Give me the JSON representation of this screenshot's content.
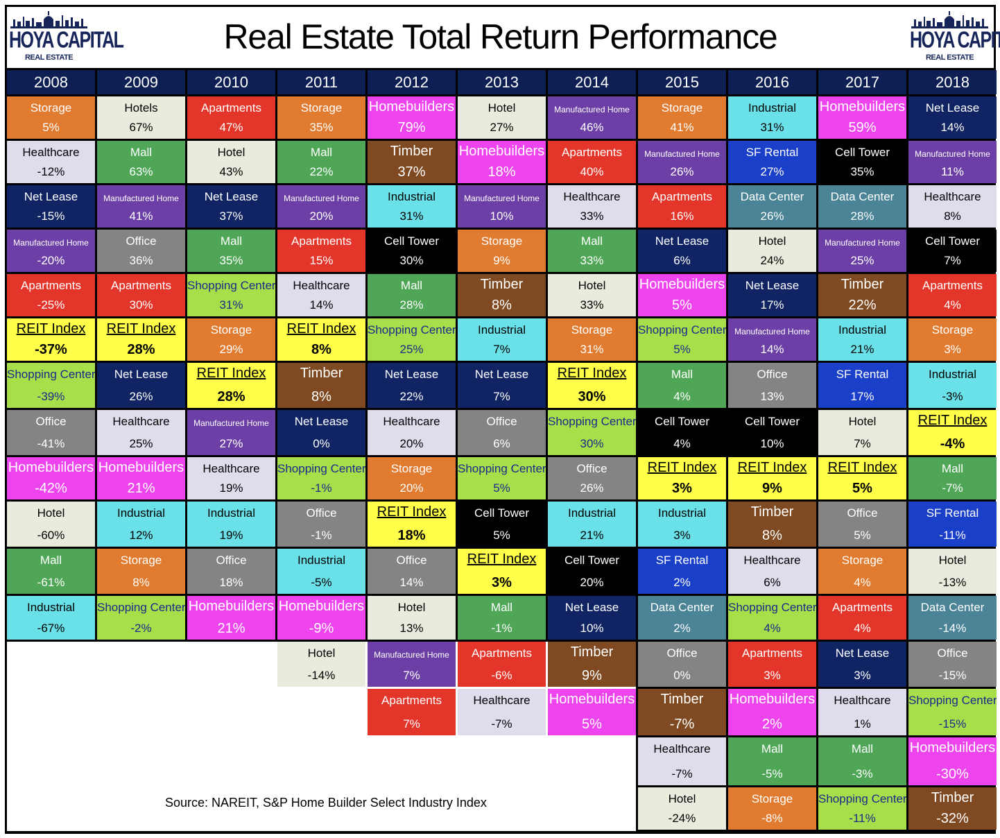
{
  "title": "Real Estate Total Return Performance",
  "logo": {
    "brand": "HOYA CAPITAL",
    "sub": "REAL ESTATE"
  },
  "source": "Source: NAREIT, S&P Home Builder Select Industry Index",
  "colors": {
    "Storage": "#e07b30",
    "Hotels": "#e8ecdc",
    "Hotel": "#e8ecdc",
    "Apartments": "#e4352a",
    "Homebuilders": "#ee44ee",
    "Manufactured Home": "#6c3fa6",
    "Industrial": "#6ae0e8",
    "Net Lease": "#102464",
    "Healthcare": "#e0dcec",
    "Mall": "#4fa656",
    "Timber": "#7f4a21",
    "SF Rental": "#1a3fc8",
    "Cell Tower": "#000000",
    "Data Center": "#4a8496",
    "Office": "#848484",
    "Shopping Center": "#a8de4a",
    "REIT Index": "#ffff4a"
  },
  "text_colors": {
    "dark": [
      "Hotels",
      "Hotel",
      "Industrial",
      "Healthcare",
      "Shopping Center",
      "REIT Index"
    ],
    "shopping_center_text": "#1a2a8a"
  },
  "chart_data": {
    "type": "table",
    "title": "Real Estate Total Return Performance",
    "years": [
      "2008",
      "2009",
      "2010",
      "2011",
      "2012",
      "2013",
      "2014",
      "2015",
      "2016",
      "2017",
      "2018"
    ],
    "columns": [
      [
        [
          "Storage",
          "5%"
        ],
        [
          "Healthcare",
          "-12%"
        ],
        [
          "Net Lease",
          "-15%"
        ],
        [
          "Manufactured Home",
          "-20%"
        ],
        [
          "Apartments",
          "-25%"
        ],
        [
          "REIT Index",
          "-37%"
        ],
        [
          "Shopping Center",
          "-39%"
        ],
        [
          "Office",
          "-41%"
        ],
        [
          "Homebuilders",
          "-42%"
        ],
        [
          "Hotel",
          "-60%"
        ],
        [
          "Mall",
          "-61%"
        ],
        [
          "Industrial",
          "-67%"
        ]
      ],
      [
        [
          "Hotels",
          "67%"
        ],
        [
          "Mall",
          "63%"
        ],
        [
          "Manufactured Home",
          "41%"
        ],
        [
          "Office",
          "36%"
        ],
        [
          "Apartments",
          "30%"
        ],
        [
          "REIT Index",
          "28%"
        ],
        [
          "Net Lease",
          "26%"
        ],
        [
          "Healthcare",
          "25%"
        ],
        [
          "Homebuilders",
          "21%"
        ],
        [
          "Industrial",
          "12%"
        ],
        [
          "Storage",
          "8%"
        ],
        [
          "Shopping Center",
          "-2%"
        ]
      ],
      [
        [
          "Apartments",
          "47%"
        ],
        [
          "Hotel",
          "43%"
        ],
        [
          "Net Lease",
          "37%"
        ],
        [
          "Mall",
          "35%"
        ],
        [
          "Shopping Center",
          "31%"
        ],
        [
          "Storage",
          "29%"
        ],
        [
          "REIT Index",
          "28%"
        ],
        [
          "Manufactured Home",
          "27%"
        ],
        [
          "Healthcare",
          "19%"
        ],
        [
          "Industrial",
          "19%"
        ],
        [
          "Office",
          "18%"
        ],
        [
          "Homebuilders",
          "21%"
        ]
      ],
      [
        [
          "Storage",
          "35%"
        ],
        [
          "Mall",
          "22%"
        ],
        [
          "Manufactured Home",
          "20%"
        ],
        [
          "Apartments",
          "15%"
        ],
        [
          "Healthcare",
          "14%"
        ],
        [
          "REIT Index",
          "8%"
        ],
        [
          "Timber",
          "8%"
        ],
        [
          "Net Lease",
          "0%"
        ],
        [
          "Shopping Center",
          "-1%"
        ],
        [
          "Office",
          "-1%"
        ],
        [
          "Industrial",
          "-5%"
        ],
        [
          "Homebuilders",
          "-9%"
        ],
        [
          "Hotel",
          "-14%"
        ]
      ],
      [
        [
          "Homebuilders",
          "79%"
        ],
        [
          "Timber",
          "37%"
        ],
        [
          "Industrial",
          "31%"
        ],
        [
          "Cell Tower",
          "30%"
        ],
        [
          "Mall",
          "28%"
        ],
        [
          "Shopping Center",
          "25%"
        ],
        [
          "Net Lease",
          "22%"
        ],
        [
          "Healthcare",
          "20%"
        ],
        [
          "Storage",
          "20%"
        ],
        [
          "REIT Index",
          "18%"
        ],
        [
          "Office",
          "14%"
        ],
        [
          "Hotel",
          "13%"
        ],
        [
          "Manufactured Home",
          "7%"
        ],
        [
          "Apartments",
          "7%"
        ]
      ],
      [
        [
          "Hotel",
          "27%"
        ],
        [
          "Homebuilders",
          "18%"
        ],
        [
          "Manufactured Home",
          "10%"
        ],
        [
          "Storage",
          "9%"
        ],
        [
          "Timber",
          "8%"
        ],
        [
          "Industrial",
          "7%"
        ],
        [
          "Net Lease",
          "7%"
        ],
        [
          "Office",
          "6%"
        ],
        [
          "Shopping Center",
          "5%"
        ],
        [
          "Cell Tower",
          "5%"
        ],
        [
          "REIT Index",
          "3%"
        ],
        [
          "Mall",
          "-1%"
        ],
        [
          "Apartments",
          "-6%"
        ],
        [
          "Healthcare",
          "-7%"
        ]
      ],
      [
        [
          "Manufactured Home",
          "46%"
        ],
        [
          "Apartments",
          "40%"
        ],
        [
          "Healthcare",
          "33%"
        ],
        [
          "Mall",
          "33%"
        ],
        [
          "Hotel",
          "33%"
        ],
        [
          "Storage",
          "31%"
        ],
        [
          "REIT Index",
          "30%"
        ],
        [
          "Shopping Center",
          "30%"
        ],
        [
          "Office",
          "26%"
        ],
        [
          "Industrial",
          "21%"
        ],
        [
          "Cell Tower",
          "20%"
        ],
        [
          "Net Lease",
          "10%"
        ],
        [
          "Timber",
          "9%"
        ],
        [
          "Homebuilders",
          "5%"
        ]
      ],
      [
        [
          "Storage",
          "41%"
        ],
        [
          "Manufactured Home",
          "26%"
        ],
        [
          "Apartments",
          "16%"
        ],
        [
          "Net Lease",
          "6%"
        ],
        [
          "Homebuilders",
          "5%"
        ],
        [
          "Shopping Center",
          "5%"
        ],
        [
          "Mall",
          "4%"
        ],
        [
          "Cell Tower",
          "4%"
        ],
        [
          "REIT Index",
          "3%"
        ],
        [
          "Industrial",
          "3%"
        ],
        [
          "SF Rental",
          "2%"
        ],
        [
          "Data Center",
          "2%"
        ],
        [
          "Office",
          "0%"
        ],
        [
          "Timber",
          "-7%"
        ],
        [
          "Healthcare",
          "-7%"
        ],
        [
          "Hotel",
          "-24%"
        ]
      ],
      [
        [
          "Industrial",
          "31%"
        ],
        [
          "SF Rental",
          "27%"
        ],
        [
          "Data Center",
          "26%"
        ],
        [
          "Hotel",
          "24%"
        ],
        [
          "Net Lease",
          "17%"
        ],
        [
          "Manufactured Home",
          "14%"
        ],
        [
          "Office",
          "13%"
        ],
        [
          "Cell Tower",
          "10%"
        ],
        [
          "REIT Index",
          "9%"
        ],
        [
          "Timber",
          "8%"
        ],
        [
          "Healthcare",
          "6%"
        ],
        [
          "Shopping Center",
          "4%"
        ],
        [
          "Apartments",
          "3%"
        ],
        [
          "Homebuilders",
          "2%"
        ],
        [
          "Mall",
          "-5%"
        ],
        [
          "Storage",
          "-8%"
        ]
      ],
      [
        [
          "Homebuilders",
          "59%"
        ],
        [
          "Cell Tower",
          "35%"
        ],
        [
          "Data Center",
          "28%"
        ],
        [
          "Manufactured Home",
          "25%"
        ],
        [
          "Timber",
          "22%"
        ],
        [
          "Industrial",
          "21%"
        ],
        [
          "SF Rental",
          "17%"
        ],
        [
          "Hotel",
          "7%"
        ],
        [
          "REIT Index",
          "5%"
        ],
        [
          "Office",
          "5%"
        ],
        [
          "Storage",
          "4%"
        ],
        [
          "Apartments",
          "4%"
        ],
        [
          "Net Lease",
          "3%"
        ],
        [
          "Healthcare",
          "1%"
        ],
        [
          "Mall",
          "-3%"
        ],
        [
          "Shopping Center",
          "-11%"
        ]
      ],
      [
        [
          "Net Lease",
          "14%"
        ],
        [
          "Manufactured Home",
          "11%"
        ],
        [
          "Healthcare",
          "8%"
        ],
        [
          "Cell Tower",
          "7%"
        ],
        [
          "Apartments",
          "4%"
        ],
        [
          "Storage",
          "3%"
        ],
        [
          "Industrial",
          "-3%"
        ],
        [
          "REIT Index",
          "-4%"
        ],
        [
          "Mall",
          "-7%"
        ],
        [
          "SF Rental",
          "-11%"
        ],
        [
          "Hotel",
          "-13%"
        ],
        [
          "Data Center",
          "-14%"
        ],
        [
          "Office",
          "-15%"
        ],
        [
          "Shopping Center",
          "-15%"
        ],
        [
          "Homebuilders",
          "-30%"
        ],
        [
          "Timber",
          "-32%"
        ]
      ]
    ]
  }
}
